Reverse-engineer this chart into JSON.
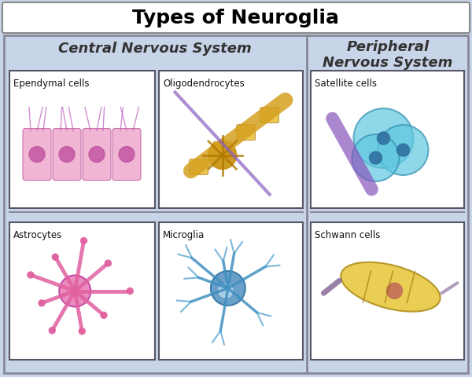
{
  "title": "Types of Neuroglia",
  "title_fontsize": 18,
  "title_bg": "#ffffff",
  "outer_bg": "#c8d4e8",
  "inner_bg": "#c8d4e8",
  "cell_bg": "#ffffff",
  "section1_label": "Central Nervous System",
  "section2_label": "Peripheral\nNervous System",
  "cells": [
    {
      "label": "Ependymal cells",
      "row": 0,
      "col": 0,
      "color": "#e8a0c8"
    },
    {
      "label": "Oligodendrocytes",
      "row": 0,
      "col": 1,
      "color": "#d4a020"
    },
    {
      "label": "Satellite cells",
      "row": 0,
      "col": 2,
      "color": "#80d0e8"
    },
    {
      "label": "Astrocytes",
      "row": 1,
      "col": 0,
      "color": "#e870b0"
    },
    {
      "label": "Microglia",
      "row": 1,
      "col": 1,
      "color": "#5090c8"
    },
    {
      "label": "Schwann cells",
      "row": 1,
      "col": 2,
      "color": "#e8c840"
    }
  ],
  "figsize": [
    6.0,
    4.8
  ],
  "dpi": 100
}
